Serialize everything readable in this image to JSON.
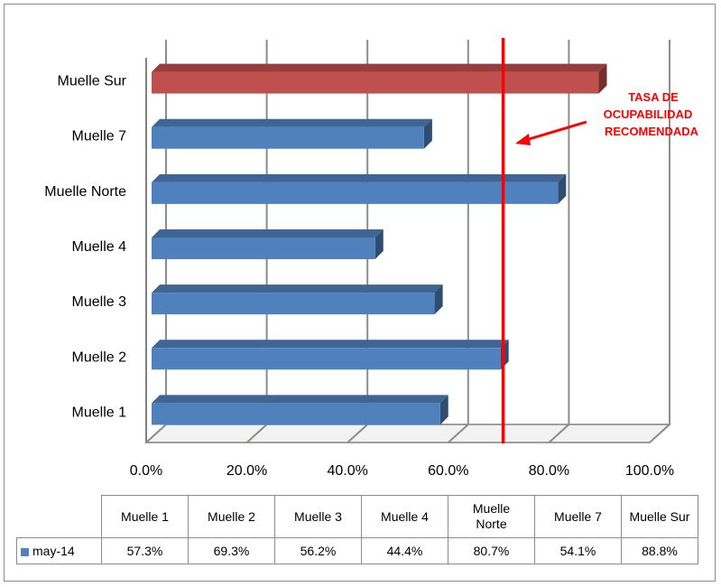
{
  "chart_data": {
    "type": "bar",
    "orientation": "horizontal",
    "categories": [
      "Muelle 1",
      "Muelle 2",
      "Muelle 3",
      "Muelle 4",
      "Muelle Norte",
      "Muelle 7",
      "Muelle Sur"
    ],
    "series": [
      {
        "name": "may-14",
        "values": [
          57.3,
          69.3,
          56.2,
          44.4,
          80.7,
          54.1,
          88.8
        ]
      }
    ],
    "value_labels": [
      "57.3%",
      "69.3%",
      "56.2%",
      "44.4%",
      "80.7%",
      "54.1%",
      "88.8%"
    ],
    "xlim": [
      0,
      100
    ],
    "x_ticks": [
      "0.0%",
      "20.0%",
      "40.0%",
      "60.0%",
      "80.0%",
      "100.0%"
    ],
    "x_tick_values": [
      0,
      20,
      40,
      60,
      80,
      100
    ],
    "grid": true,
    "legend": "data-table",
    "reference_line": {
      "value": 70,
      "label_lines": [
        "TASA DE",
        "OCUPABILIDAD",
        "RECOMENDADA"
      ]
    },
    "colors": {
      "bar": "#4f81bd",
      "highlight_bar": "#c0504d",
      "reference_line": "#ff0000",
      "annotation": "#ff0000"
    },
    "highlight_category": "Muelle Sur"
  },
  "table": {
    "headers": [
      "Muelle 1",
      "Muelle 2",
      "Muelle 3",
      "Muelle 4",
      [
        "Muelle",
        "Norte"
      ],
      "Muelle 7",
      "Muelle Sur"
    ],
    "series_label": "may-14"
  }
}
